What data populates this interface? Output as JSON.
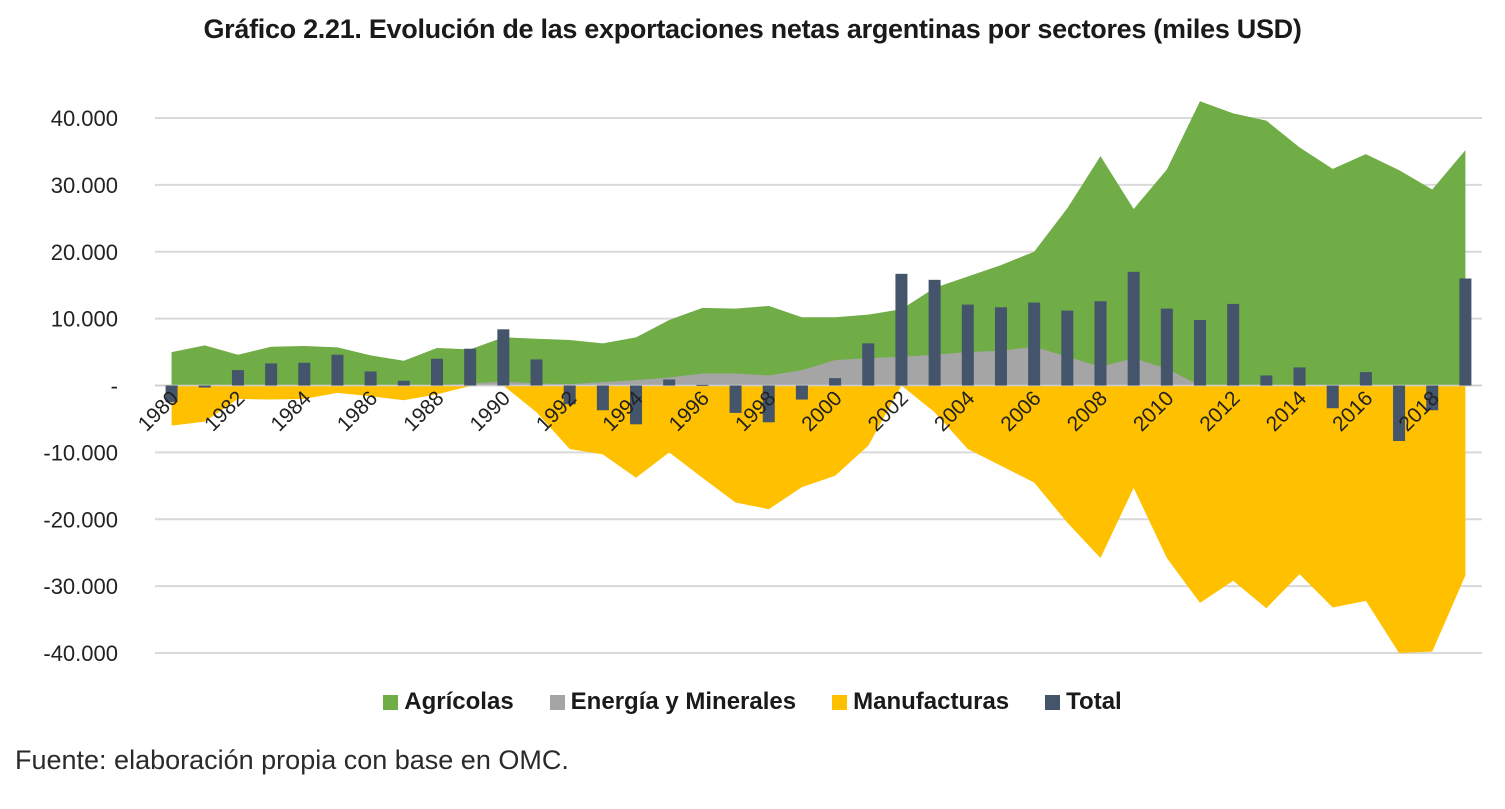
{
  "chart_data": {
    "type": "area",
    "title": "Gráfico 2.21. Evolución de las exportaciones netas argentinas por sectores (miles USD)",
    "xlabel": "",
    "ylabel": "",
    "ylim": [
      -40000,
      40000
    ],
    "yticks": [
      40000,
      30000,
      20000,
      10000,
      0,
      -10000,
      -20000,
      -30000,
      -40000
    ],
    "ytick_labels": [
      "40.000",
      "30.000",
      "20.000",
      "10.000",
      "-",
      "-10.000",
      "-20.000",
      "-30.000",
      "-40.000"
    ],
    "grid": true,
    "legend_position": "bottom",
    "x": [
      1980,
      1981,
      1982,
      1983,
      1984,
      1985,
      1986,
      1987,
      1988,
      1989,
      1990,
      1991,
      1992,
      1993,
      1994,
      1995,
      1996,
      1997,
      1998,
      1999,
      2000,
      2001,
      2002,
      2003,
      2004,
      2005,
      2006,
      2007,
      2008,
      2009,
      2010,
      2011,
      2012,
      2013,
      2014,
      2015,
      2016,
      2017,
      2018,
      2019
    ],
    "xtick_labels": [
      "1980",
      "1982",
      "1984",
      "1986",
      "1988",
      "1990",
      "1992",
      "1994",
      "1996",
      "1998",
      "2000",
      "2002",
      "2004",
      "2006",
      "2008",
      "2010",
      "2012",
      "2014",
      "2016",
      "2018"
    ],
    "series": [
      {
        "name": "Agrícolas",
        "kind": "area",
        "color": "#70AD47",
        "values": [
          5000,
          6000,
          4600,
          5800,
          5900,
          5700,
          4500,
          3700,
          5600,
          5400,
          7200,
          7000,
          6800,
          6300,
          7200,
          9800,
          11600,
          11500,
          11900,
          10200,
          10200,
          10600,
          11400,
          14600,
          16300,
          18000,
          20000,
          26500,
          34300,
          26400,
          32300,
          42500,
          40700,
          39600,
          35600,
          32400,
          34600,
          32200,
          29300,
          35200
        ]
      },
      {
        "name": "Energía y Minerales",
        "kind": "area",
        "color": "#A5A5A5",
        "values": [
          0,
          0,
          0,
          0,
          0,
          0,
          0,
          0,
          0,
          300,
          600,
          300,
          200,
          500,
          800,
          1200,
          1800,
          1800,
          1500,
          2300,
          3800,
          4100,
          4300,
          4600,
          5000,
          5200,
          5800,
          4300,
          2800,
          4100,
          2500,
          0,
          0,
          0,
          0,
          0,
          0,
          0,
          0,
          0
        ]
      },
      {
        "name": "Manufacturas",
        "kind": "area",
        "color": "#FFC000",
        "values": [
          -6000,
          -5400,
          -2000,
          -2100,
          -2000,
          -1100,
          -1600,
          -2200,
          -1300,
          -100,
          0,
          -4000,
          -9500,
          -10300,
          -13800,
          -10000,
          -13800,
          -17500,
          -18500,
          -15200,
          -13500,
          -9000,
          0,
          -4000,
          -9500,
          -12000,
          -14500,
          -20500,
          -25800,
          -15300,
          -25800,
          -32500,
          -29200,
          -33300,
          -28200,
          -33200,
          -32200,
          -40000,
          -39800,
          -28400
        ]
      },
      {
        "name": "Total",
        "kind": "bar",
        "color": "#44546A",
        "values": [
          -2500,
          -300,
          2300,
          3300,
          3400,
          4600,
          2100,
          700,
          4000,
          5500,
          8400,
          3900,
          -2800,
          -3700,
          -5800,
          900,
          100,
          -4100,
          -5500,
          -2100,
          1100,
          6300,
          16700,
          15800,
          12100,
          11700,
          12400,
          11200,
          12600,
          17000,
          11500,
          9800,
          12200,
          1500,
          2700,
          -3400,
          2000,
          -8300,
          -3700,
          16000
        ]
      }
    ]
  },
  "page": {
    "title": "Gráfico 2.21. Evolución de las exportaciones netas argentinas por sectores (miles USD)",
    "source": "Fuente: elaboración propia con base en OMC."
  },
  "legend": [
    {
      "label": "Agrícolas",
      "color": "#70AD47"
    },
    {
      "label": "Energía y Minerales",
      "color": "#A5A5A5"
    },
    {
      "label": "Manufacturas",
      "color": "#FFC000"
    },
    {
      "label": "Total",
      "color": "#44546A"
    }
  ],
  "colors": {
    "grid": "#D9D9D9",
    "axis_text": "#222222"
  }
}
